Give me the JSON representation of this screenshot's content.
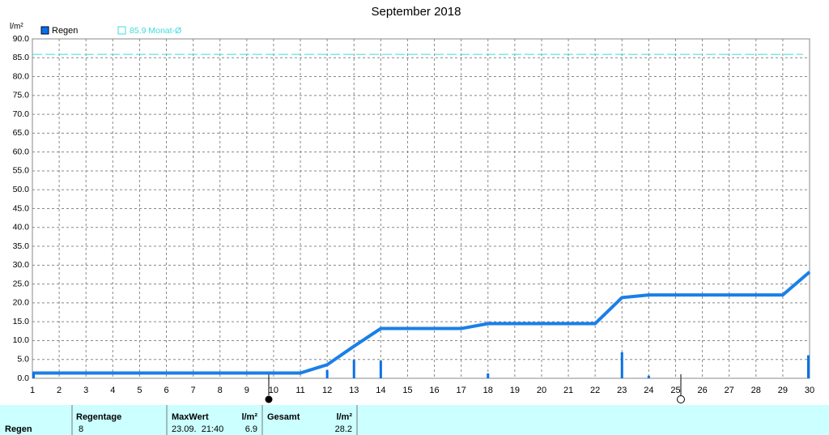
{
  "chart_data": {
    "type": "bar",
    "title": "September 2018",
    "y_label": "l/m²",
    "x": [
      1,
      2,
      3,
      4,
      5,
      6,
      7,
      8,
      9,
      10,
      11,
      12,
      13,
      14,
      15,
      16,
      17,
      18,
      19,
      20,
      21,
      22,
      23,
      24,
      25,
      26,
      27,
      28,
      29,
      30
    ],
    "series": [
      {
        "name": "Regen",
        "color": "#0a70e6",
        "values": [
          1.4,
          0,
          0,
          0,
          0,
          0,
          0,
          0,
          0,
          0,
          0,
          2.2,
          4.9,
          4.7,
          0,
          0,
          0,
          1.3,
          0,
          0,
          0,
          0,
          6.9,
          0.7,
          0,
          0,
          0,
          0,
          0,
          6.1
        ]
      }
    ],
    "line_color": "#1a7fe8",
    "line_values": [
      1.4,
      1.4,
      1.4,
      1.4,
      1.4,
      1.4,
      1.4,
      1.4,
      1.4,
      1.4,
      1.4,
      3.6,
      8.5,
      13.2,
      13.2,
      13.2,
      13.2,
      14.5,
      14.5,
      14.5,
      14.5,
      14.5,
      21.4,
      22.1,
      22.1,
      22.1,
      22.1,
      22.1,
      22.1,
      28.2
    ],
    "reference": {
      "value": 85.9,
      "label": "85.9 Monat-Ø",
      "color": "#3cdcdc"
    },
    "xlim": [
      1,
      30
    ],
    "xticks": [
      1,
      2,
      3,
      4,
      5,
      6,
      7,
      8,
      9,
      10,
      11,
      12,
      13,
      14,
      15,
      16,
      17,
      18,
      19,
      20,
      21,
      22,
      23,
      24,
      25,
      26,
      27,
      28,
      29,
      30
    ],
    "ylim": [
      0,
      90
    ],
    "yticks": [
      {
        "value": 0,
        "label": "0.0"
      },
      {
        "value": 5,
        "label": "5.0"
      },
      {
        "value": 10,
        "label": "10.0"
      },
      {
        "value": 15,
        "label": "15.0"
      },
      {
        "value": 20,
        "label": "20.0"
      },
      {
        "value": 25,
        "label": "25.0"
      },
      {
        "value": 30,
        "label": "30.0"
      },
      {
        "value": 35,
        "label": "35.0"
      },
      {
        "value": 40,
        "label": "40.0"
      },
      {
        "value": 45,
        "label": "45.0"
      },
      {
        "value": 50,
        "label": "50.0"
      },
      {
        "value": 55,
        "label": "55.0"
      },
      {
        "value": 60,
        "label": "60.0"
      },
      {
        "value": 65,
        "label": "65.0"
      },
      {
        "value": 70,
        "label": "70.0"
      },
      {
        "value": 75,
        "label": "75.0"
      },
      {
        "value": 80,
        "label": "80.0"
      },
      {
        "value": 85,
        "label": "85.0"
      },
      {
        "value": 90,
        "label": "90.0"
      }
    ],
    "grid": true
  },
  "table": {
    "headers": [
      "Regentage",
      "MaxWert",
      "l/m²",
      "Gesamt",
      "l/m²"
    ],
    "row": [
      "Regen",
      "8",
      "23.09.  21:40",
      "6.9",
      "28.2"
    ]
  }
}
